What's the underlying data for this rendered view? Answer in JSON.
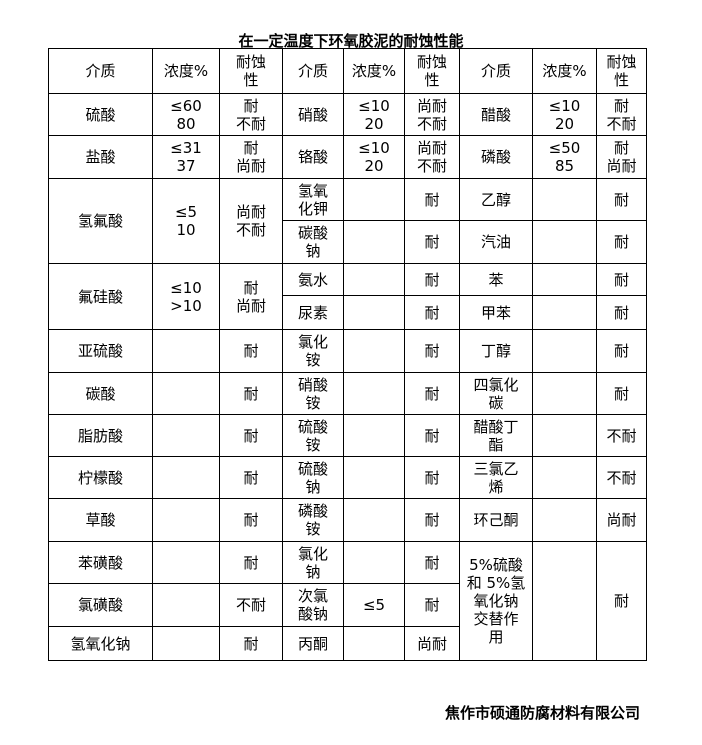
{
  "title": "在一定温度下环氧胶泥的耐蚀性能",
  "table": {
    "rows": [
      [
        "介质",
        "浓度%",
        "耐蚀\n性",
        "介质",
        "浓度%",
        "耐蚀\n性",
        "介质",
        "浓度%",
        "耐蚀\n性"
      ],
      [
        "硫酸",
        "≤60\n80",
        "耐\n不耐",
        "硝酸",
        "≤10\n20",
        "尚耐\n不耐",
        "醋酸",
        "≤10\n20",
        "耐\n不耐"
      ],
      [
        "盐酸",
        "≤31\n37",
        "耐\n尚耐",
        "铬酸",
        "≤10\n20",
        "尚耐\n不耐",
        "磷酸",
        "≤50\n85",
        "耐\n尚耐"
      ],
      [
        "氢氟酸",
        "≤5\n10",
        "尚耐\n不耐",
        "氢氧\n化钾",
        "",
        "耐",
        "乙醇",
        "",
        "耐"
      ],
      [
        "碳酸\n钠",
        "",
        "耐",
        "汽油",
        "",
        "耐"
      ],
      [
        "氟硅酸",
        "≤10\n>10",
        "耐\n尚耐",
        "氨水",
        "",
        "耐",
        "苯",
        "",
        "耐"
      ],
      [
        "尿素",
        "",
        "耐",
        "甲苯",
        "",
        "耐"
      ],
      [
        "亚硫酸",
        "",
        "耐",
        "氯化\n铵",
        "",
        "耐",
        "丁醇",
        "",
        "耐"
      ],
      [
        "碳酸",
        "",
        "耐",
        "硝酸\n铵",
        "",
        "耐",
        "四氯化\n碳",
        "",
        "耐"
      ],
      [
        "脂肪酸",
        "",
        "耐",
        "硫酸\n铵",
        "",
        "耐",
        "醋酸丁\n酯",
        "",
        "不耐"
      ],
      [
        "柠檬酸",
        "",
        "耐",
        "硫酸\n钠",
        "",
        "耐",
        "三氯乙\n烯",
        "",
        "不耐"
      ],
      [
        "草酸",
        "",
        "耐",
        "磷酸\n铵",
        "",
        "耐",
        "环己酮",
        "",
        "尚耐"
      ],
      [
        "苯磺酸",
        "",
        "耐",
        "氯化\n钠",
        "",
        "耐",
        "5%硫酸\n和 5%氢\n氧化钠\n交替作\n用",
        "",
        "耐"
      ],
      [
        "氯磺酸",
        "",
        "不耐",
        "次氯\n酸钠",
        "≤5",
        "耐"
      ],
      [
        "氢氧化钠",
        "",
        "耐",
        "丙酮",
        "",
        "尚耐"
      ]
    ]
  },
  "footer": "焦作市硕通防腐材料有限公司"
}
